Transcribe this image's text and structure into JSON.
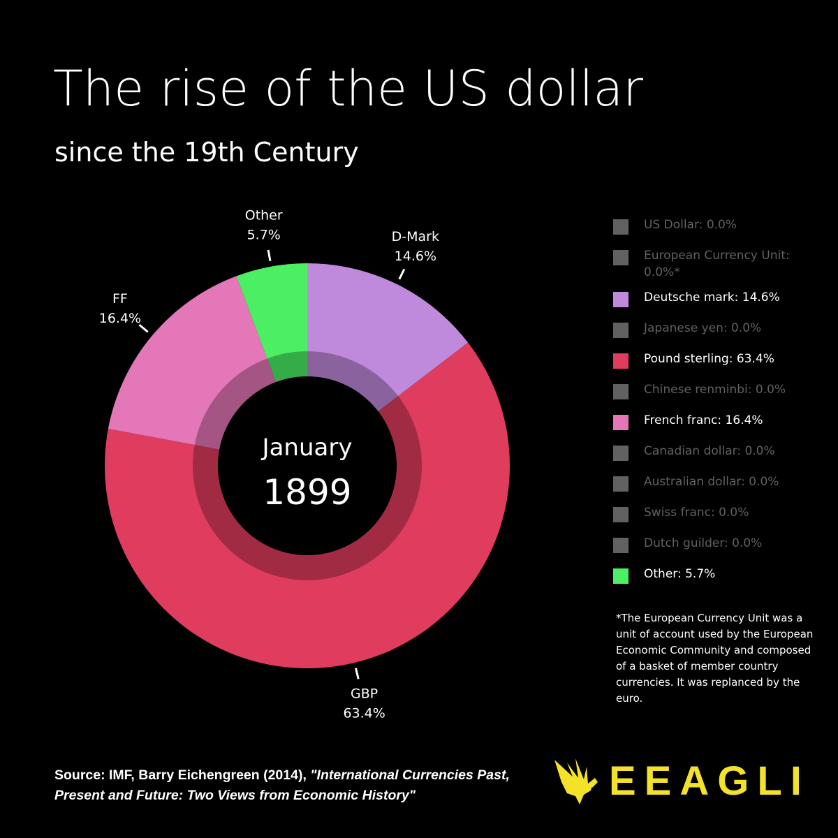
{
  "header": {
    "title": "The rise of the US dollar",
    "subtitle": "since the 19th Century"
  },
  "center": {
    "month": "January",
    "year": "1899"
  },
  "colors": {
    "background": "#000000",
    "pound_sterling": "#e03c5e",
    "deutsche_mark": "#c08adc",
    "french_franc": "#e377b8",
    "other": "#4cef64",
    "inactive": "#616161",
    "brand": "#f4e12a"
  },
  "chart_data": {
    "type": "pie",
    "style": "donut",
    "slices": [
      {
        "key": "dm",
        "label": "D-Mark",
        "value": 14.6,
        "value_label": "14.6%",
        "color": "#c08adc"
      },
      {
        "key": "gbp",
        "label": "GBP",
        "value": 63.4,
        "value_label": "63.4%",
        "color": "#e03c5e"
      },
      {
        "key": "ff",
        "label": "FF",
        "value": 16.4,
        "value_label": "16.4%",
        "color": "#e377b8"
      },
      {
        "key": "other",
        "label": "Other",
        "value": 5.7,
        "value_label": "5.7%",
        "color": "#4cef64"
      }
    ],
    "legend_position": "right"
  },
  "legend": [
    {
      "label": "US Dollar: 0.0%",
      "color": "#616161",
      "active": false
    },
    {
      "label": "European Currency Unit: 0.0%*",
      "color": "#616161",
      "active": false
    },
    {
      "label": "Deutsche mark: 14.6%",
      "color": "#c08adc",
      "active": true
    },
    {
      "label": "Japanese yen: 0.0%",
      "color": "#616161",
      "active": false
    },
    {
      "label": "Pound sterling: 63.4%",
      "color": "#e03c5e",
      "active": true
    },
    {
      "label": "Chinese renminbi: 0.0%",
      "color": "#616161",
      "active": false
    },
    {
      "label": "French franc: 16.4%",
      "color": "#e377b8",
      "active": true
    },
    {
      "label": "Canadian dollar: 0.0%",
      "color": "#616161",
      "active": false
    },
    {
      "label": "Australian dollar: 0.0%",
      "color": "#616161",
      "active": false
    },
    {
      "label": "Swiss franc: 0.0%",
      "color": "#616161",
      "active": false
    },
    {
      "label": "Dutch guilder: 0.0%",
      "color": "#616161",
      "active": false
    },
    {
      "label": "Other: 5.7%",
      "color": "#4cef64",
      "active": true
    }
  ],
  "footnote": "*The European Currency Unit was a unit of account used by the European Economic Community and composed of a basket of member country currencies. It was replanced by the euro.",
  "source": {
    "prefix": "Source: IMF, Barry Eichengreen (2014), ",
    "title": "\"International Currencies Past, Present and Future: Two Views from Economic History\""
  },
  "brand": {
    "name": "EEAGLI",
    "logo_icon": "eagle-icon"
  }
}
